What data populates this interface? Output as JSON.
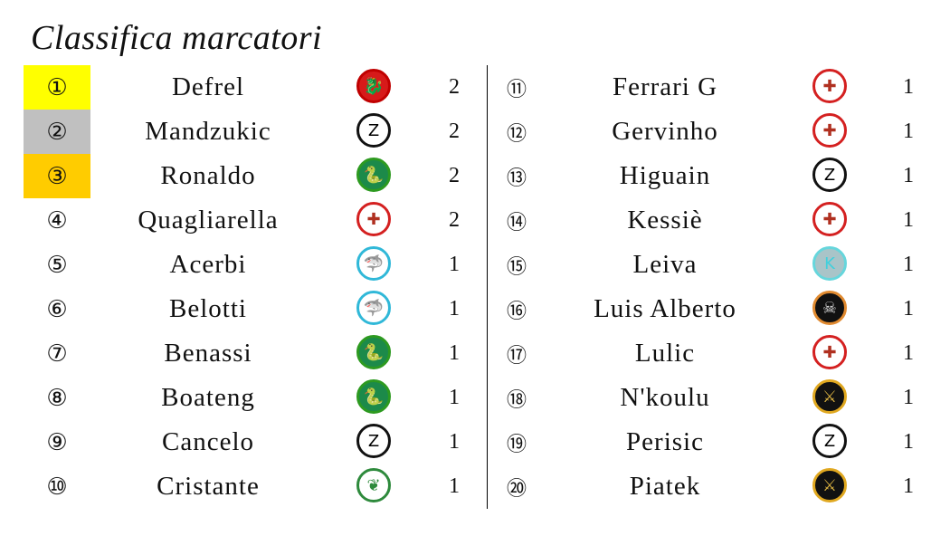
{
  "title": "Classifica marcatori",
  "logo_styles": {
    "dragon": {
      "bg": "#d71a1a",
      "border": "#c00000",
      "fg": "#000",
      "glyph": "🐉"
    },
    "zorro": {
      "bg": "#fff",
      "border": "#111",
      "fg": "#000",
      "glyph": "Z"
    },
    "snake": {
      "bg": "#1c8a4a",
      "border": "#2d9a20",
      "fg": "#000",
      "glyph": "🐍"
    },
    "crusader": {
      "bg": "#fff",
      "border": "#d42020",
      "fg": "#b03020",
      "glyph": "✚"
    },
    "shark": {
      "bg": "#fff",
      "border": "#30b8d8",
      "fg": "#30b8d8",
      "glyph": "🦈"
    },
    "ornithio": {
      "bg": "#fff",
      "border": "#2e8a3c",
      "fg": "#2e8a3c",
      "glyph": "❦"
    },
    "kite": {
      "bg": "#a9c4c8",
      "border": "#66d6dc",
      "fg": "#40d0dc",
      "glyph": "K"
    },
    "pirate": {
      "bg": "#111",
      "border": "#e08a30",
      "fg": "#ddd",
      "glyph": "☠"
    },
    "viking": {
      "bg": "#111",
      "border": "#e0a820",
      "fg": "#d8b040",
      "glyph": "⚔"
    }
  },
  "rank_highlights": {
    "1": "#ffff00",
    "2": "#c0c0c0",
    "3": "#ffcc00"
  },
  "scorers": [
    {
      "rank": "①",
      "name": "Defrel",
      "team_logo": "dragon",
      "goals": "2"
    },
    {
      "rank": "②",
      "name": "Mandzukic",
      "team_logo": "zorro",
      "goals": "2"
    },
    {
      "rank": "③",
      "name": "Ronaldo",
      "team_logo": "snake",
      "goals": "2"
    },
    {
      "rank": "④",
      "name": "Quagliarella",
      "team_logo": "crusader",
      "goals": "2"
    },
    {
      "rank": "⑤",
      "name": "Acerbi",
      "team_logo": "shark",
      "goals": "1"
    },
    {
      "rank": "⑥",
      "name": "Belotti",
      "team_logo": "shark",
      "goals": "1"
    },
    {
      "rank": "⑦",
      "name": "Benassi",
      "team_logo": "snake",
      "goals": "1"
    },
    {
      "rank": "⑧",
      "name": "Boateng",
      "team_logo": "snake",
      "goals": "1"
    },
    {
      "rank": "⑨",
      "name": "Cancelo",
      "team_logo": "zorro",
      "goals": "1"
    },
    {
      "rank": "⑩",
      "name": "Cristante",
      "team_logo": "ornithio",
      "goals": "1"
    },
    {
      "rank": "⑪",
      "name": "Ferrari G",
      "team_logo": "crusader",
      "goals": "1"
    },
    {
      "rank": "⑫",
      "name": "Gervinho",
      "team_logo": "crusader",
      "goals": "1"
    },
    {
      "rank": "⑬",
      "name": "Higuain",
      "team_logo": "zorro",
      "goals": "1"
    },
    {
      "rank": "⑭",
      "name": "Kessiè",
      "team_logo": "crusader",
      "goals": "1"
    },
    {
      "rank": "⑮",
      "name": "Leiva",
      "team_logo": "kite",
      "goals": "1"
    },
    {
      "rank": "⑯",
      "name": "Luis Alberto",
      "team_logo": "pirate",
      "goals": "1"
    },
    {
      "rank": "⑰",
      "name": "Lulic",
      "team_logo": "crusader",
      "goals": "1"
    },
    {
      "rank": "⑱",
      "name": "N'koulu",
      "team_logo": "viking",
      "goals": "1"
    },
    {
      "rank": "⑲",
      "name": "Perisic",
      "team_logo": "zorro",
      "goals": "1"
    },
    {
      "rank": "⑳",
      "name": "Piatek",
      "team_logo": "viking",
      "goals": "1"
    }
  ]
}
